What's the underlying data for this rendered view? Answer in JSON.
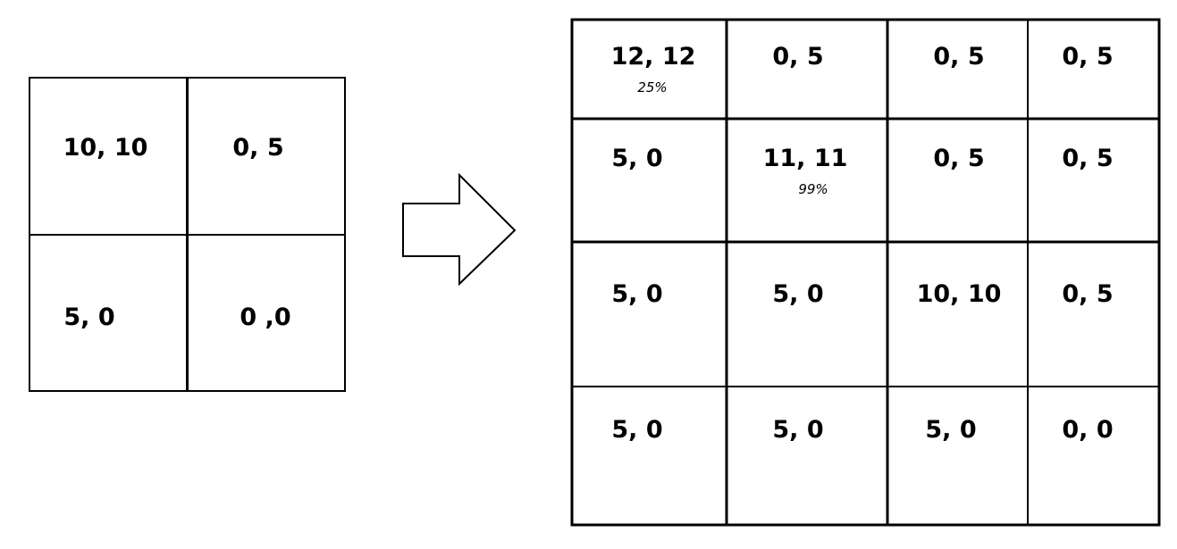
{
  "left_matrix": {
    "rows": [
      [
        {
          "label": "10, 10"
        },
        {
          "label": "0, 5"
        }
      ],
      [
        {
          "label": "5, 0"
        },
        {
          "label": "0 ,0"
        }
      ]
    ]
  },
  "right_matrix": {
    "rows": [
      [
        {
          "label": "12, 12",
          "percent": "25%"
        },
        {
          "label": "0, 5"
        },
        {
          "label": "0, 5"
        },
        {
          "label": "0, 5"
        }
      ],
      [
        {
          "label": "5, 0"
        },
        {
          "label": "11, 11",
          "percent": "99%"
        },
        {
          "label": "0, 5"
        },
        {
          "label": "0, 5"
        }
      ],
      [
        {
          "label": "5, 0"
        },
        {
          "label": "5, 0"
        },
        {
          "label": "10, 10"
        },
        {
          "label": "0, 5"
        }
      ],
      [
        {
          "label": "5, 0"
        },
        {
          "label": "5, 0"
        },
        {
          "label": "5, 0"
        },
        {
          "label": "0, 0"
        }
      ]
    ]
  }
}
